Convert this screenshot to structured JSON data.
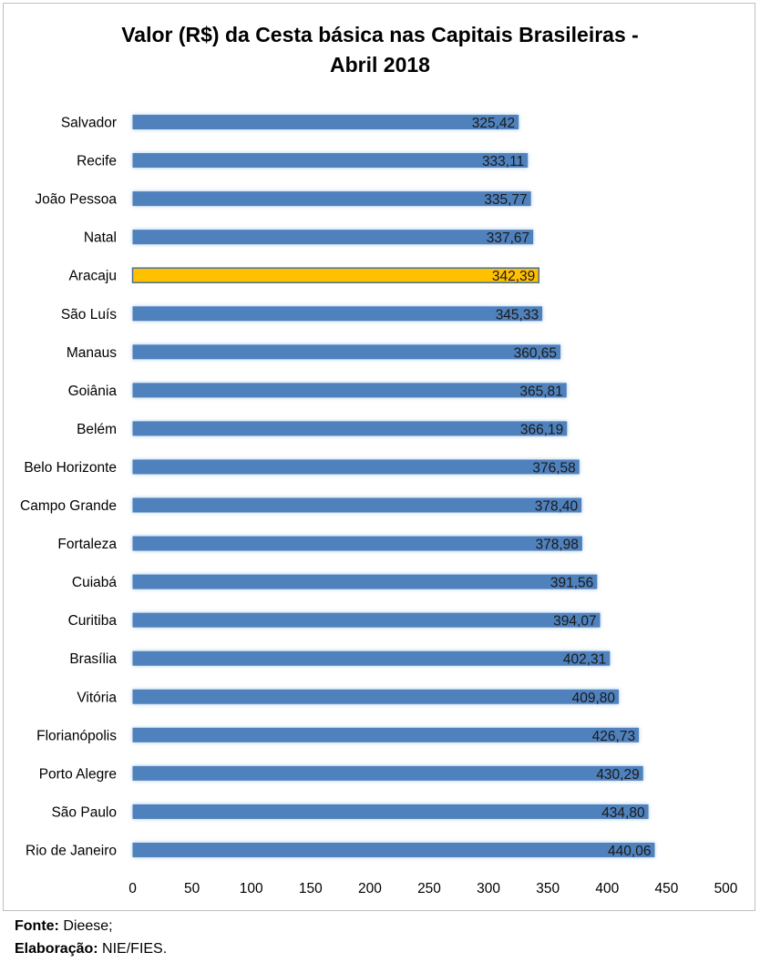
{
  "chart_data": {
    "type": "bar",
    "orientation": "horizontal",
    "title": [
      "Valor (R$) da Cesta básica nas Capitais Brasileiras -",
      "Abril 2018"
    ],
    "categories": [
      "Salvador",
      "Recife",
      "João Pessoa",
      "Natal",
      "Aracaju",
      "São Luís",
      "Manaus",
      "Goiânia",
      "Belém",
      "Belo Horizonte",
      "Campo Grande",
      "Fortaleza",
      "Cuiabá",
      "Curitiba",
      "Brasília",
      "Vitória",
      "Florianópolis",
      "Porto Alegre",
      "São Paulo",
      "Rio de Janeiro"
    ],
    "values": [
      325.42,
      333.11,
      335.77,
      337.67,
      342.39,
      345.33,
      360.65,
      365.81,
      366.19,
      376.58,
      378.4,
      378.98,
      391.56,
      394.07,
      402.31,
      409.8,
      426.73,
      430.29,
      434.8,
      440.06
    ],
    "value_labels": [
      "325,42",
      "333,11",
      "335,77",
      "337,67",
      "342,39",
      "345,33",
      "360,65",
      "365,81",
      "366,19",
      "376,58",
      "378,40",
      "378,98",
      "391,56",
      "394,07",
      "402,31",
      "409,80",
      "426,73",
      "430,29",
      "434,80",
      "440,06"
    ],
    "highlight_category": "Aracaju",
    "bar_color": "#4f81bd",
    "highlight_color": "#ffc000",
    "highlight_border": "#4a6f96",
    "xlim": [
      0,
      500
    ],
    "xticks": [
      0,
      50,
      100,
      150,
      200,
      250,
      300,
      350,
      400,
      450,
      500
    ],
    "xlabel": "",
    "ylabel": "",
    "grid": false,
    "legend": "none"
  },
  "footer": {
    "source_label": "Fonte:",
    "source_value": "Dieese;",
    "credit_label": "Elaboração:",
    "credit_value": "NIE/FIES."
  }
}
